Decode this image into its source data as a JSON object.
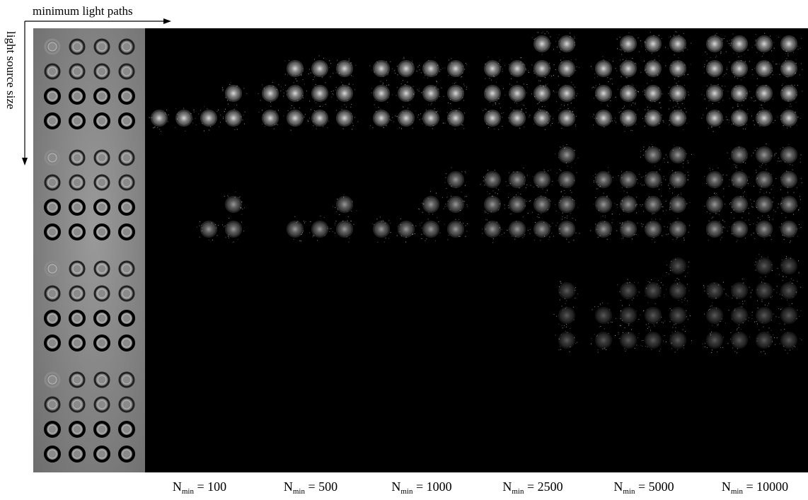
{
  "axes": {
    "x_label": "minimum light paths",
    "y_label": "light source size"
  },
  "columns": [
    {
      "subscript": "min",
      "value": "100"
    },
    {
      "subscript": "min",
      "value": "500"
    },
    {
      "subscript": "min",
      "value": "1000"
    },
    {
      "subscript": "min",
      "value": "2500"
    },
    {
      "subscript": "min",
      "value": "5000"
    },
    {
      "subscript": "min",
      "value": "10000"
    }
  ],
  "symbol": "N",
  "equals": "=",
  "colors": {
    "background": "#ffffff",
    "render_background": "#000000",
    "reference_background": "#7a7a7a"
  },
  "grid": {
    "rows": 4,
    "reference_columns": 1,
    "result_columns": 6,
    "spheres_per_tile": [
      4,
      4
    ]
  }
}
